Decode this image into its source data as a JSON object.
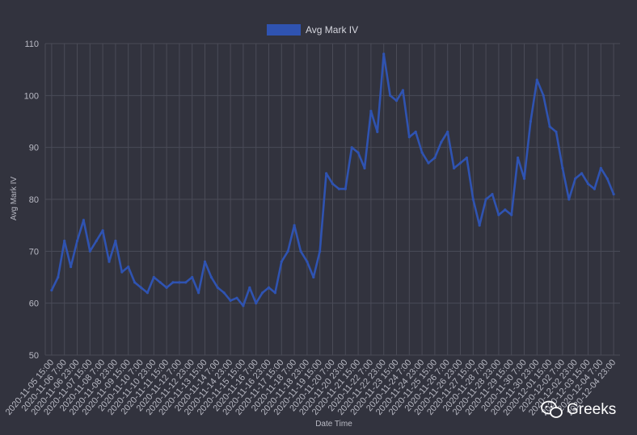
{
  "colors": {
    "background": "#32333e",
    "grid": "#4a4b57",
    "series": "#2f53b1",
    "text": "#b9bac4"
  },
  "watermark": {
    "icon": "wechat-icon",
    "text": "Greeks"
  },
  "chart_data": {
    "type": "line",
    "title": "",
    "xlabel": "Date Time",
    "ylabel": "Avg Mark IV",
    "ylim": [
      50,
      110
    ],
    "yticks": [
      50,
      60,
      70,
      80,
      90,
      100,
      110
    ],
    "grid": true,
    "legend_position": "top-center",
    "x_tick_labels": [
      "2020-11-05 15:00",
      "2020-11-06 7:00",
      "2020-11-06 23:00",
      "2020-11-07 15:00",
      "2020-11-08 7:00",
      "2020-11-08 23:00",
      "2020-11-09 15:00",
      "2020-11-10 7:00",
      "2020-11-10 23:00",
      "2020-11-11 15:00",
      "2020-11-12 7:00",
      "2020-11-12 23:00",
      "2020-11-13 15:00",
      "2020-11-14 7:00",
      "2020-11-14 23:00",
      "2020-11-15 15:00",
      "2020-11-16 7:00",
      "2020-11-16 23:00",
      "2020-11-17 15:00",
      "2020-11-18 7:00",
      "2020-11-18 23:00",
      "2020-11-19 15:00",
      "2020-11-20 7:00",
      "2020-11-20 23:00",
      "2020-11-21 15:00",
      "2020-11-22 7:00",
      "2020-11-22 23:00",
      "2020-11-23 15:00",
      "2020-11-24 7:00",
      "2020-11-24 23:00",
      "2020-11-25 15:00",
      "2020-11-26 7:00",
      "2020-11-26 23:00",
      "2020-11-27 15:00",
      "2020-11-28 7:00",
      "2020-11-28 23:00",
      "2020-11-29 15:00",
      "2020-11-30 7:00",
      "2020-11-30 23:00",
      "2020-12-01 15:00",
      "2020-12-02 7:00",
      "2020-12-02 23:00",
      "2020-12-03 15:00",
      "2020-12-04 7:00",
      "2020-12-04 23:00"
    ],
    "series": [
      {
        "name": "Avg Mark IV",
        "x": [
          "2020-11-05 15:00",
          "2020-11-05 23:00",
          "2020-11-06 7:00",
          "2020-11-06 15:00",
          "2020-11-06 23:00",
          "2020-11-07 7:00",
          "2020-11-07 15:00",
          "2020-11-07 23:00",
          "2020-11-08 7:00",
          "2020-11-08 15:00",
          "2020-11-08 23:00",
          "2020-11-09 7:00",
          "2020-11-09 15:00",
          "2020-11-09 23:00",
          "2020-11-10 7:00",
          "2020-11-10 15:00",
          "2020-11-10 23:00",
          "2020-11-11 7:00",
          "2020-11-11 15:00",
          "2020-11-11 23:00",
          "2020-11-12 7:00",
          "2020-11-12 15:00",
          "2020-11-12 23:00",
          "2020-11-13 7:00",
          "2020-11-13 15:00",
          "2020-11-13 23:00",
          "2020-11-14 7:00",
          "2020-11-14 15:00",
          "2020-11-14 23:00",
          "2020-11-15 7:00",
          "2020-11-15 15:00",
          "2020-11-15 23:00",
          "2020-11-16 7:00",
          "2020-11-16 15:00",
          "2020-11-16 23:00",
          "2020-11-17 7:00",
          "2020-11-17 15:00",
          "2020-11-17 23:00",
          "2020-11-18 7:00",
          "2020-11-18 15:00",
          "2020-11-18 23:00",
          "2020-11-19 7:00",
          "2020-11-19 15:00",
          "2020-11-19 23:00",
          "2020-11-20 7:00",
          "2020-11-20 15:00",
          "2020-11-20 23:00",
          "2020-11-21 7:00",
          "2020-11-21 15:00",
          "2020-11-21 23:00",
          "2020-11-22 7:00",
          "2020-11-22 15:00",
          "2020-11-22 23:00",
          "2020-11-23 7:00",
          "2020-11-23 15:00",
          "2020-11-23 23:00",
          "2020-11-24 7:00",
          "2020-11-24 15:00",
          "2020-11-24 23:00",
          "2020-11-25 7:00",
          "2020-11-25 15:00",
          "2020-11-25 23:00",
          "2020-11-26 7:00",
          "2020-11-26 15:00",
          "2020-11-26 23:00",
          "2020-11-27 7:00",
          "2020-11-27 15:00",
          "2020-11-27 23:00",
          "2020-11-28 7:00",
          "2020-11-28 15:00",
          "2020-11-28 23:00",
          "2020-11-29 7:00",
          "2020-11-29 15:00",
          "2020-11-29 23:00",
          "2020-11-30 7:00",
          "2020-11-30 15:00",
          "2020-11-30 23:00",
          "2020-12-01 7:00",
          "2020-12-01 15:00",
          "2020-12-01 23:00",
          "2020-12-02 7:00",
          "2020-12-02 15:00",
          "2020-12-02 23:00",
          "2020-12-03 7:00",
          "2020-12-03 15:00",
          "2020-12-03 23:00",
          "2020-12-04 7:00",
          "2020-12-04 15:00",
          "2020-12-04 23:00"
        ],
        "values": [
          62.5,
          65,
          72,
          67,
          72,
          76,
          70,
          72,
          74,
          68,
          72,
          66,
          67,
          64,
          63,
          62,
          65,
          64,
          63,
          64,
          64,
          64,
          65,
          62,
          68,
          65,
          63,
          62,
          60.5,
          61,
          59.5,
          63,
          60,
          62,
          63,
          62,
          68,
          70,
          75,
          70,
          68,
          65,
          70,
          85,
          83,
          82,
          82,
          90,
          89,
          86,
          97,
          93,
          108,
          100,
          99,
          101,
          92,
          93,
          89,
          87,
          88,
          91,
          93,
          86,
          87,
          88,
          80,
          75,
          80,
          81,
          77,
          78,
          77,
          88,
          84,
          95,
          103,
          100,
          94,
          93,
          86,
          80,
          84,
          85,
          83,
          82,
          86,
          84,
          81
        ]
      }
    ]
  }
}
